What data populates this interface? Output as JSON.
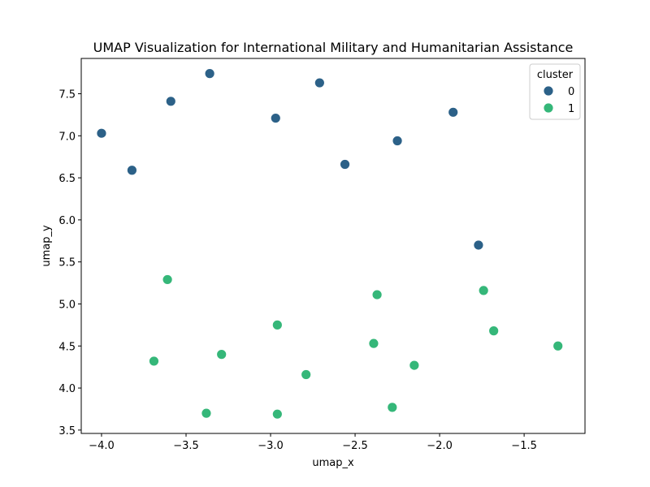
{
  "chart_data": {
    "type": "scatter",
    "title": "UMAP Visualization for International Military and Humanitarian Assistance",
    "xlabel": "umap_x",
    "ylabel": "umap_y",
    "xlim": [
      -4.12,
      -1.14
    ],
    "ylim": [
      3.46,
      7.92
    ],
    "xticks": [
      -4.0,
      -3.5,
      -3.0,
      -2.5,
      -2.0,
      -1.5
    ],
    "xtick_labels": [
      "−4.0",
      "−3.5",
      "−3.0",
      "−2.5",
      "−2.0",
      "−1.5"
    ],
    "yticks": [
      3.5,
      4.0,
      4.5,
      5.0,
      5.5,
      6.0,
      6.5,
      7.0,
      7.5
    ],
    "ytick_labels": [
      "3.5",
      "4.0",
      "4.5",
      "5.0",
      "5.5",
      "6.0",
      "6.5",
      "7.0",
      "7.5"
    ],
    "grid": false,
    "legend": {
      "title": "cluster",
      "placement": "top-right",
      "entries": [
        "0",
        "1"
      ]
    },
    "series": [
      {
        "name": "0",
        "color": "#2c6188",
        "points": [
          {
            "x": -4.0,
            "y": 7.03
          },
          {
            "x": -3.82,
            "y": 6.59
          },
          {
            "x": -3.59,
            "y": 7.41
          },
          {
            "x": -3.36,
            "y": 7.74
          },
          {
            "x": -2.97,
            "y": 7.21
          },
          {
            "x": -2.71,
            "y": 7.63
          },
          {
            "x": -2.56,
            "y": 6.66
          },
          {
            "x": -2.25,
            "y": 6.94
          },
          {
            "x": -1.92,
            "y": 7.28
          },
          {
            "x": -1.77,
            "y": 5.7
          }
        ]
      },
      {
        "name": "1",
        "color": "#35b779",
        "points": [
          {
            "x": -3.61,
            "y": 5.29
          },
          {
            "x": -3.69,
            "y": 4.32
          },
          {
            "x": -3.38,
            "y": 3.7
          },
          {
            "x": -3.29,
            "y": 4.4
          },
          {
            "x": -2.96,
            "y": 4.75
          },
          {
            "x": -2.96,
            "y": 3.69
          },
          {
            "x": -2.79,
            "y": 4.16
          },
          {
            "x": -2.39,
            "y": 4.53
          },
          {
            "x": -2.37,
            "y": 5.11
          },
          {
            "x": -2.28,
            "y": 3.77
          },
          {
            "x": -2.15,
            "y": 4.27
          },
          {
            "x": -1.74,
            "y": 5.16
          },
          {
            "x": -1.68,
            "y": 4.68
          },
          {
            "x": -1.3,
            "y": 4.5
          }
        ]
      }
    ]
  }
}
